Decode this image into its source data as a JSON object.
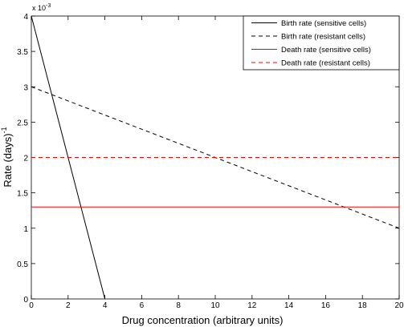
{
  "chart_data": {
    "type": "line",
    "xlabel": "Drug concentration (arbitrary units)",
    "ylabel": "Rate (days)",
    "ylabel_exponent": "-1",
    "y_multiplier": "x 10",
    "y_multiplier_exponent": "-3",
    "xlim": [
      0,
      20
    ],
    "xticks": [
      0,
      2,
      4,
      6,
      8,
      10,
      12,
      14,
      16,
      18,
      20
    ],
    "ylim": [
      0,
      4
    ],
    "yticks": [
      0,
      0.5,
      1,
      1.5,
      2,
      2.5,
      3,
      3.5,
      4
    ],
    "legend": "upper-right",
    "series": [
      {
        "name": "Birth rate (sensitive cells)",
        "color": "#000000",
        "dash": false,
        "x": [
          0,
          4
        ],
        "values": [
          4,
          0
        ]
      },
      {
        "name": "Birth rate (resistant cells)",
        "color": "#000000",
        "dash": true,
        "x": [
          0,
          20
        ],
        "values": [
          3,
          1
        ]
      },
      {
        "name": "Death rate (sensitive cells)",
        "color": "#ff0000",
        "dash": false,
        "x": [
          0,
          20
        ],
        "values": [
          1.3,
          1.3
        ]
      },
      {
        "name": "Death rate (resistant cells)",
        "color": "#ff0000",
        "dash": true,
        "x": [
          0,
          20
        ],
        "values": [
          2,
          2
        ]
      }
    ]
  }
}
